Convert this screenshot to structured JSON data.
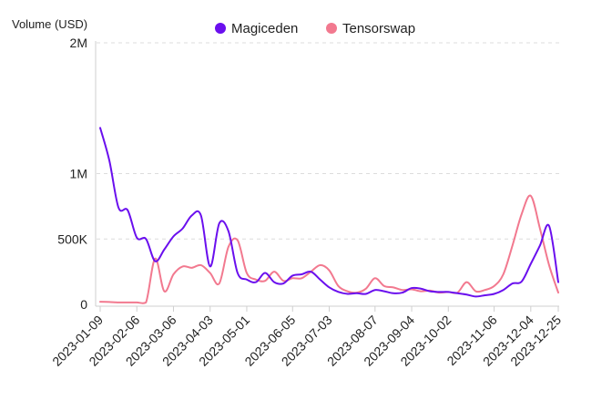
{
  "chart_data": {
    "type": "line",
    "title": "",
    "ylabel": "Volume (USD)",
    "xlabel": "",
    "ylim": [
      0,
      2000000
    ],
    "y_ticks": [
      {
        "value": 0,
        "label": "0"
      },
      {
        "value": 500000,
        "label": "500K"
      },
      {
        "value": 1000000,
        "label": "1M"
      },
      {
        "value": 2000000,
        "label": "2M"
      }
    ],
    "x_ticks": [
      {
        "index": 0,
        "label": "2023-01-09"
      },
      {
        "index": 4,
        "label": "2023-02-06"
      },
      {
        "index": 8,
        "label": "2023-03-06"
      },
      {
        "index": 12,
        "label": "2023-04-03"
      },
      {
        "index": 16,
        "label": "2023-05-01"
      },
      {
        "index": 21,
        "label": "2023-06-05"
      },
      {
        "index": 25,
        "label": "2023-07-03"
      },
      {
        "index": 30,
        "label": "2023-08-07"
      },
      {
        "index": 34,
        "label": "2023-09-04"
      },
      {
        "index": 38,
        "label": "2023-10-02"
      },
      {
        "index": 43,
        "label": "2023-11-06"
      },
      {
        "index": 47,
        "label": "2023-12-04"
      },
      {
        "index": 50,
        "label": "2023-12-25"
      }
    ],
    "legend": [
      {
        "name": "Magiceden",
        "color": "#6a0fee"
      },
      {
        "name": "Tensorswap",
        "color": "#f2798f"
      }
    ],
    "series": [
      {
        "name": "Magiceden",
        "color": "#6a0fee",
        "values": [
          1350000,
          1100000,
          740000,
          720000,
          510000,
          500000,
          330000,
          420000,
          520000,
          580000,
          680000,
          680000,
          290000,
          620000,
          560000,
          240000,
          190000,
          170000,
          240000,
          170000,
          160000,
          220000,
          230000,
          250000,
          190000,
          130000,
          95000,
          80000,
          85000,
          80000,
          110000,
          100000,
          85000,
          90000,
          125000,
          120000,
          100000,
          95000,
          95000,
          85000,
          75000,
          60000,
          70000,
          80000,
          110000,
          160000,
          175000,
          310000,
          450000,
          600000,
          170000
        ]
      },
      {
        "name": "Tensorswap",
        "color": "#f2798f",
        "values": [
          20000,
          18000,
          15000,
          15000,
          15000,
          15000,
          350000,
          100000,
          230000,
          290000,
          280000,
          300000,
          240000,
          160000,
          440000,
          490000,
          240000,
          190000,
          180000,
          250000,
          180000,
          200000,
          200000,
          250000,
          300000,
          260000,
          140000,
          100000,
          90000,
          120000,
          200000,
          140000,
          130000,
          110000,
          115000,
          100000,
          105000,
          90000,
          95000,
          90000,
          170000,
          100000,
          110000,
          140000,
          230000,
          450000,
          690000,
          830000,
          580000,
          300000,
          90000
        ]
      }
    ]
  }
}
